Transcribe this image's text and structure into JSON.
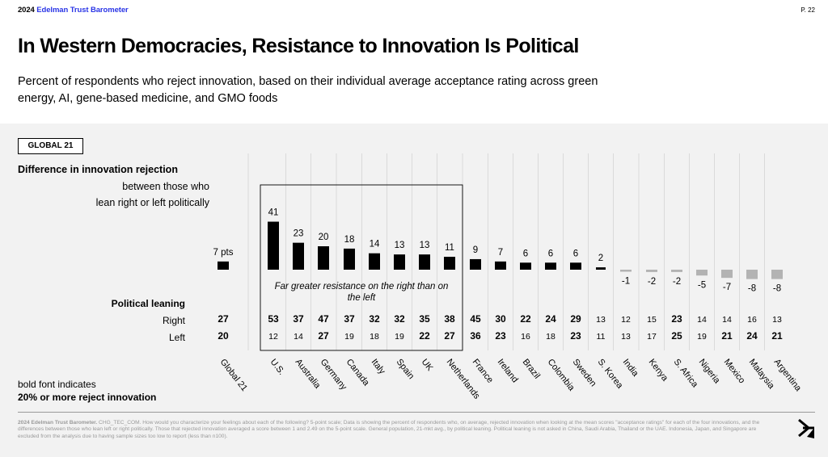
{
  "header": {
    "brand_year": "2024",
    "brand_name": "Edelman Trust Barometer",
    "page_number": "P. 22"
  },
  "title": "In Western Democracies, Resistance to Innovation Is Political",
  "subtitle": "Percent of respondents who reject innovation, based on their individual average acceptance rating across green energy, AI, gene-based medicine, and GMO foods",
  "badge": "GLOBAL 21",
  "chart_heading": "Difference in innovation rejection",
  "chart_subheading_1": "between those who",
  "chart_subheading_2": "lean right or left politically",
  "political_leaning_label": "Political leaning",
  "right_label": "Right",
  "left_label": "Left",
  "annotation": "Far greater resistance on the right than on the left",
  "note_line1": "bold font indicates",
  "note_line2": "20% or more reject innovation",
  "footer_bold": "2024 Edelman Trust Barometer.",
  "footer_text": " CHG_TEC_COM. How would you characterize your feelings about each of the following? 5-point scale; Data is showing the percent of respondents who, on average, rejected innovation when looking at the mean scores \"acceptance ratings\" for each of the four innovations, and the differences between those who lean left or right politically. Those that rejected innovation averaged a score between 1 and 2.49 on the 5-point scale. General population, 21-mkt avg., by political leaning. Political leaning is not asked in China, Saudi Arabia, Thailand or the UAE. Indonesia, Japan, and Singapore are excluded from the analysis due to having sample sizes too low to report (less than n100).",
  "colors": {
    "positive_bar": "#000000",
    "negative_bar": "#b3b3b3",
    "brand_blue": "#2a35e6",
    "panel_bg": "#f2f2f2"
  },
  "chart_data": {
    "type": "bar",
    "categories": [
      "Global 21",
      "U.S.",
      "Australia",
      "Germany",
      "Canada",
      "Italy",
      "Spain",
      "UK",
      "Netherlands",
      "France",
      "Ireland",
      "Brazil",
      "Colombia",
      "Sweden",
      "S. Korea",
      "India",
      "Kenya",
      "S. Africa",
      "Nigeria",
      "Mexico",
      "Malaysia",
      "Argentina"
    ],
    "values": [
      7,
      41,
      23,
      20,
      18,
      14,
      13,
      13,
      11,
      9,
      7,
      6,
      6,
      6,
      2,
      -1,
      -2,
      -2,
      -5,
      -7,
      -8,
      -8
    ],
    "value_labels": [
      "7 pts",
      "41",
      "23",
      "20",
      "18",
      "14",
      "13",
      "13",
      "11",
      "9",
      "7",
      "6",
      "6",
      "6",
      "2",
      "-1",
      "-2",
      "-2",
      "-5",
      "-7",
      "-8",
      "-8"
    ],
    "right": [
      27,
      53,
      37,
      47,
      37,
      32,
      32,
      35,
      38,
      45,
      30,
      22,
      24,
      29,
      13,
      12,
      15,
      23,
      14,
      14,
      16,
      13
    ],
    "left": [
      20,
      12,
      14,
      27,
      19,
      18,
      19,
      22,
      27,
      36,
      23,
      16,
      18,
      23,
      11,
      13,
      17,
      25,
      19,
      21,
      24,
      21
    ],
    "bold_threshold": 20,
    "highlighted_group": [
      "U.S.",
      "Australia",
      "Germany",
      "Canada",
      "Italy",
      "Spain",
      "UK",
      "Netherlands"
    ],
    "ylabel": "Difference in innovation rejection"
  }
}
